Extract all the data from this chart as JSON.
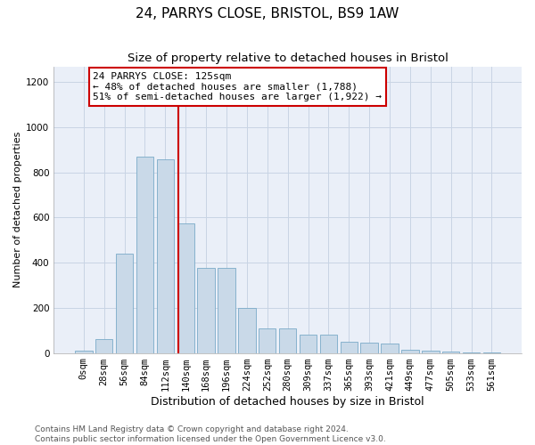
{
  "title1": "24, PARRYS CLOSE, BRISTOL, BS9 1AW",
  "title2": "Size of property relative to detached houses in Bristol",
  "xlabel": "Distribution of detached houses by size in Bristol",
  "ylabel": "Number of detached properties",
  "bar_labels": [
    "0sqm",
    "28sqm",
    "56sqm",
    "84sqm",
    "112sqm",
    "140sqm",
    "168sqm",
    "196sqm",
    "224sqm",
    "252sqm",
    "280sqm",
    "309sqm",
    "337sqm",
    "365sqm",
    "393sqm",
    "421sqm",
    "449sqm",
    "477sqm",
    "505sqm",
    "533sqm",
    "561sqm"
  ],
  "bar_heights": [
    10,
    60,
    440,
    870,
    860,
    575,
    375,
    375,
    200,
    110,
    110,
    80,
    80,
    50,
    47,
    40,
    15,
    10,
    5,
    3,
    3
  ],
  "bar_color": "#c9d9e8",
  "bar_edge_color": "#7aaac8",
  "vline_x": 4.65,
  "vline_color": "#cc0000",
  "annotation_text": "24 PARRYS CLOSE: 125sqm\n← 48% of detached houses are smaller (1,788)\n51% of semi-detached houses are larger (1,922) →",
  "annotation_box_color": "#cc0000",
  "ylim": [
    0,
    1270
  ],
  "yticks": [
    0,
    200,
    400,
    600,
    800,
    1000,
    1200
  ],
  "grid_color": "#c8d4e4",
  "bg_color": "#eaeff8",
  "footer": "Contains HM Land Registry data © Crown copyright and database right 2024.\nContains public sector information licensed under the Open Government Licence v3.0.",
  "title1_fontsize": 11,
  "title2_fontsize": 9.5,
  "xlabel_fontsize": 9,
  "ylabel_fontsize": 8,
  "tick_fontsize": 7.5,
  "annotation_fontsize": 8,
  "footer_fontsize": 6.5
}
